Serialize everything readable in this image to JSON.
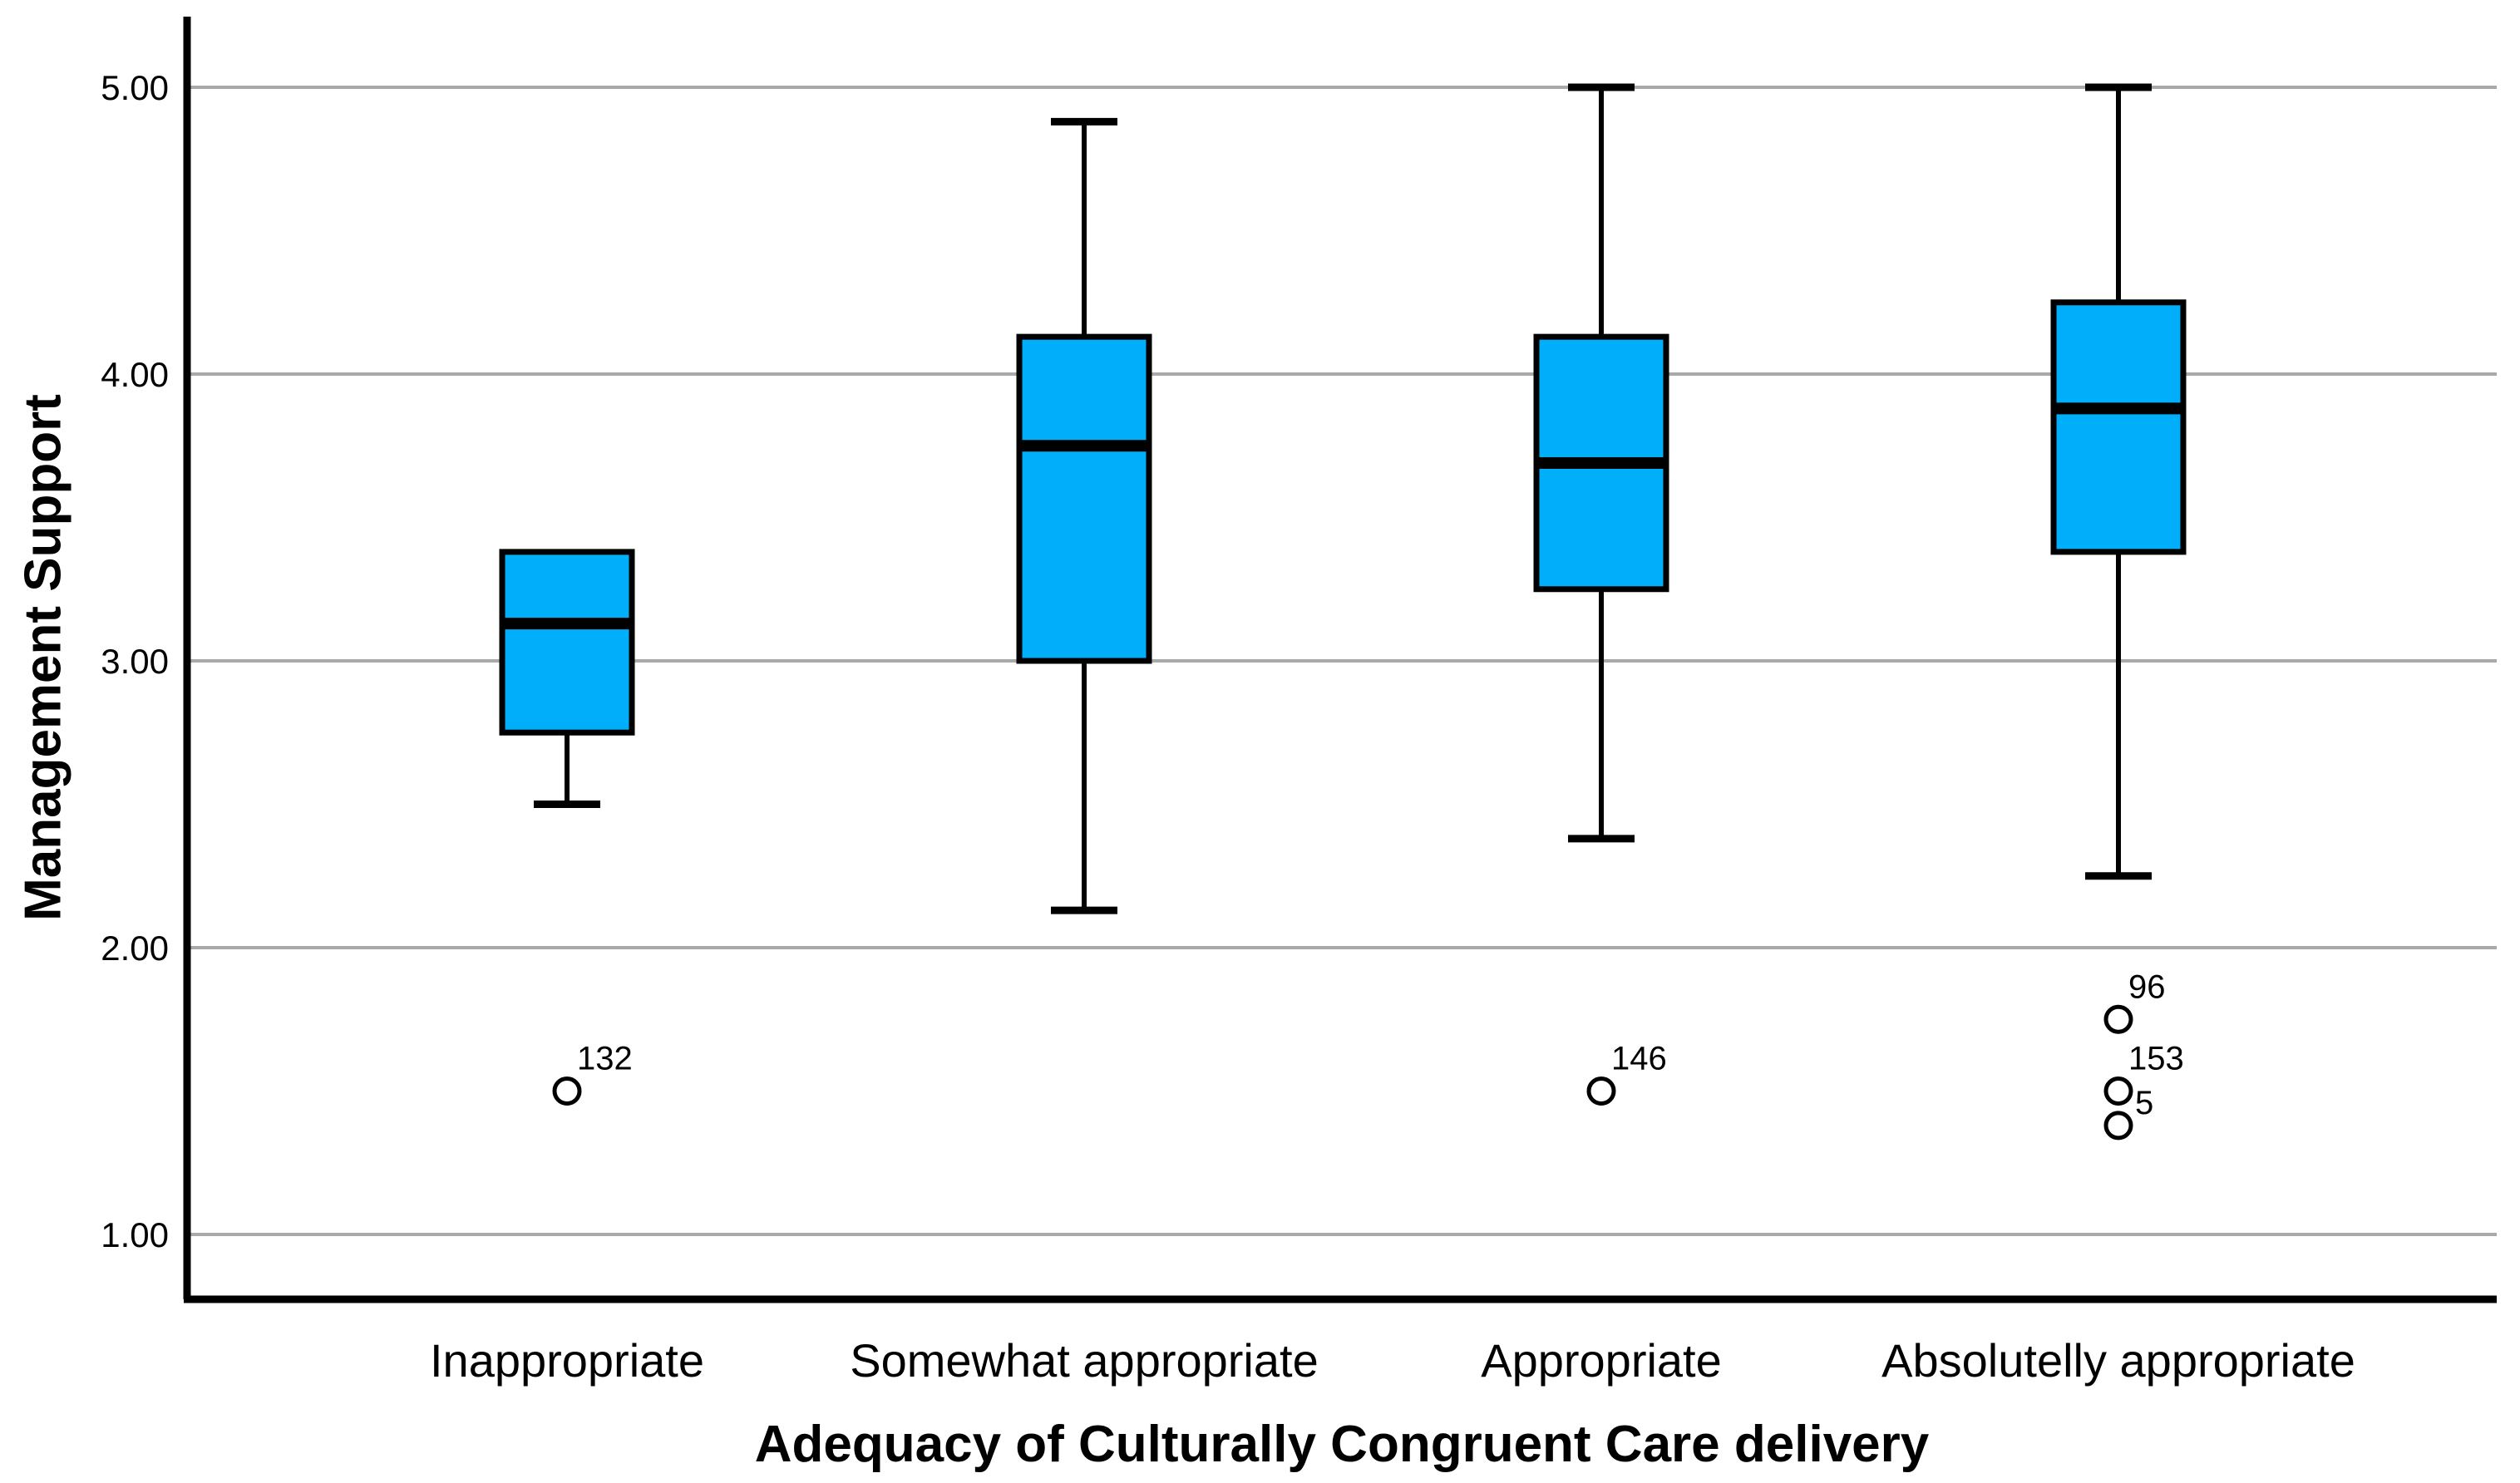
{
  "chart_data": {
    "type": "boxplot",
    "title": "",
    "xlabel": "Adequacy of Culturally Congruent Care delivery",
    "ylabel": "Management Support",
    "ylim": [
      0.78,
      5.25
    ],
    "grid": "horizontal",
    "legend": "none",
    "yticks": [
      {
        "value": 1,
        "label": "1.00"
      },
      {
        "value": 2,
        "label": "2.00"
      },
      {
        "value": 3,
        "label": "3.00"
      },
      {
        "value": 4,
        "label": "4.00"
      },
      {
        "value": 5,
        "label": "5.00"
      }
    ],
    "categories": [
      "Inappropriate",
      "Somewhat appropriate",
      "Appropriate",
      "Absolutelly appropriate"
    ],
    "boxes": [
      {
        "category": "Inappropriate",
        "whisker_low": 2.5,
        "q1": 2.75,
        "median": 3.13,
        "q3": 3.38,
        "whisker_high": 3.38,
        "outliers": [
          {
            "value": 1.5,
            "label": "132"
          }
        ]
      },
      {
        "category": "Somewhat appropriate",
        "whisker_low": 2.13,
        "q1": 3.0,
        "median": 3.75,
        "q3": 4.13,
        "whisker_high": 4.88,
        "outliers": []
      },
      {
        "category": "Appropriate",
        "whisker_low": 2.38,
        "q1": 3.25,
        "median": 3.69,
        "q3": 4.13,
        "whisker_high": 5.0,
        "outliers": [
          {
            "value": 1.5,
            "label": "146"
          }
        ]
      },
      {
        "category": "Absolutelly appropriate",
        "whisker_low": 2.25,
        "q1": 3.38,
        "median": 3.88,
        "q3": 4.25,
        "whisker_high": 5.0,
        "outliers": [
          {
            "value": 1.75,
            "label": "96"
          },
          {
            "value": 1.5,
            "label": "153"
          },
          {
            "value": 1.38,
            "label": "5"
          }
        ]
      }
    ],
    "colors": {
      "box_fill": "#00AEFA",
      "box_stroke": "#000000",
      "median": "#000000",
      "whisker": "#000000",
      "outlier_stroke": "#000000",
      "gridline": "#A9A9A9",
      "axis": "#000000",
      "background": "#FFFFFF",
      "text": "#000000"
    }
  }
}
